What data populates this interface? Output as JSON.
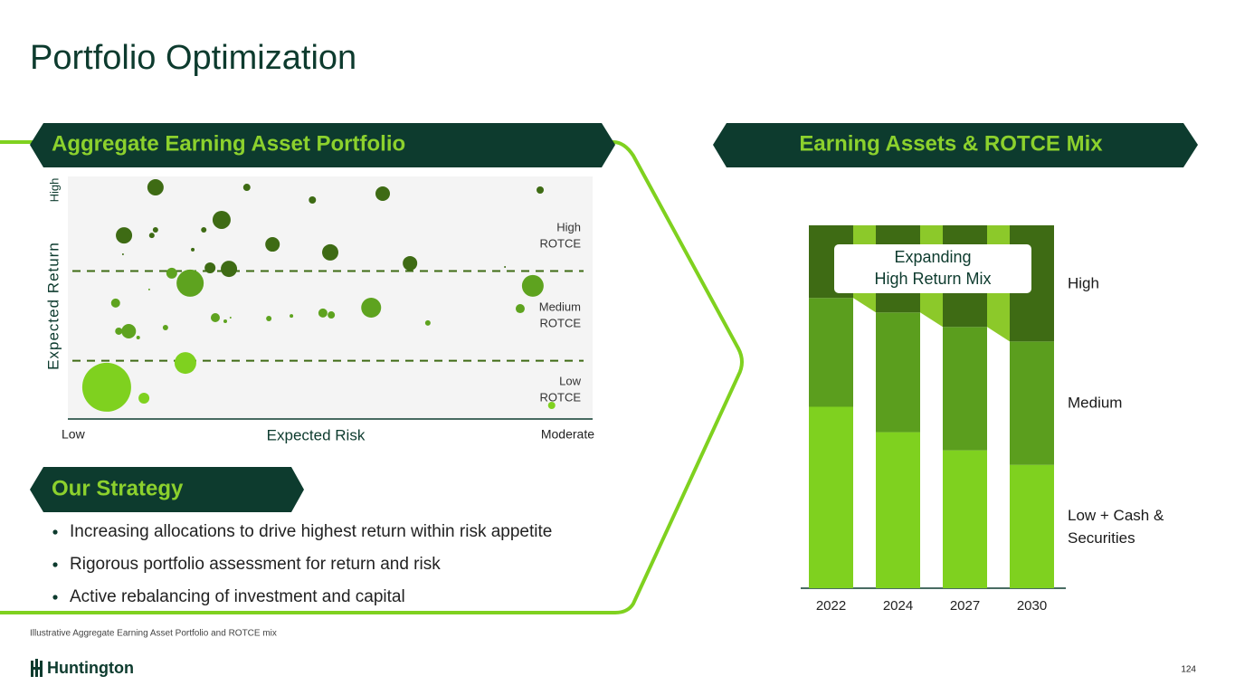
{
  "title": "Portfolio Optimization",
  "left_header": "Aggregate Earning Asset Portfolio",
  "right_header": "Earning Assets & ROTCE Mix",
  "strategy_header": "Our Strategy",
  "bullets": [
    "Increasing allocations to drive highest return within risk appetite",
    "Rigorous portfolio assessment for return and risk",
    "Active rebalancing of investment and capital"
  ],
  "footnote": "Illustrative Aggregate Earning Asset Portfolio and ROTCE mix",
  "logo": "Huntington",
  "page_number": "124",
  "chart_data": [
    {
      "type": "scatter",
      "x_label": "Expected Risk",
      "y_label": "Expected Return",
      "x_end_labels": [
        "Low",
        "Moderate"
      ],
      "y_end_label": "High",
      "xlim": [
        0,
        100
      ],
      "ylim": [
        0,
        100
      ],
      "x": [
        16.7,
        34.1,
        46.6,
        60.0,
        90.0,
        10.7,
        16.0,
        16.7,
        29.3,
        25.9,
        23.8,
        10.5,
        39.0,
        50.0,
        19.8,
        27.1,
        30.7,
        23.3,
        65.2,
        83.3,
        88.6,
        15.5,
        9.1,
        86.2,
        57.8,
        28.1,
        30.0,
        31.0,
        38.3,
        42.6,
        48.6,
        50.2,
        18.6,
        68.6,
        9.7,
        11.6,
        13.4,
        22.4,
        7.4,
        14.5,
        92.2
      ],
      "y": [
        95.5,
        95.5,
        90.3,
        92.9,
        94.4,
        75.7,
        75.7,
        78.0,
        82.1,
        78.0,
        69.8,
        67.9,
        72.0,
        68.7,
        60.1,
        62.3,
        61.9,
        56.0,
        64.2,
        62.7,
        54.9,
        53.4,
        47.8,
        45.5,
        45.9,
        41.8,
        40.3,
        41.8,
        41.4,
        42.5,
        43.7,
        42.9,
        37.7,
        39.6,
        36.2,
        36.2,
        33.6,
        23.1,
        13.1,
        8.6,
        5.6
      ],
      "sizes": [
        9,
        4,
        4,
        8,
        4,
        9,
        3,
        3,
        10,
        3,
        2,
        1,
        8,
        9,
        6,
        6,
        9,
        15,
        8,
        1,
        12,
        1,
        5,
        5,
        11,
        5,
        2,
        1,
        3,
        2,
        5,
        4,
        3,
        3,
        4,
        8,
        2,
        12,
        27,
        6,
        4
      ],
      "thresholds": [
        61,
        24
      ],
      "zones": [
        {
          "label": [
            "High",
            "ROTCE"
          ],
          "color": "#3e6b14"
        },
        {
          "label": [
            "Medium",
            "ROTCE"
          ],
          "color": "#5ea31f"
        },
        {
          "label": [
            "Low",
            "ROTCE"
          ],
          "color": "#7fd11f"
        }
      ]
    },
    {
      "type": "bar",
      "stacked": true,
      "categories": [
        "2022",
        "2024",
        "2027",
        "2030"
      ],
      "ylim": [
        0,
        100
      ],
      "series": [
        {
          "name": "Low + Cash & Securities",
          "color": "#7fd11f",
          "values": [
            50,
            43,
            38,
            34
          ]
        },
        {
          "name": "Medium",
          "color": "#5b9e1e",
          "values": [
            30,
            33,
            34,
            34
          ]
        },
        {
          "name": "High",
          "color": "#3e6b14",
          "values": [
            20,
            24,
            28,
            32
          ]
        }
      ],
      "annotation": [
        "Expanding",
        "High Return Mix"
      ],
      "connector_color": "#8cc92a"
    }
  ]
}
